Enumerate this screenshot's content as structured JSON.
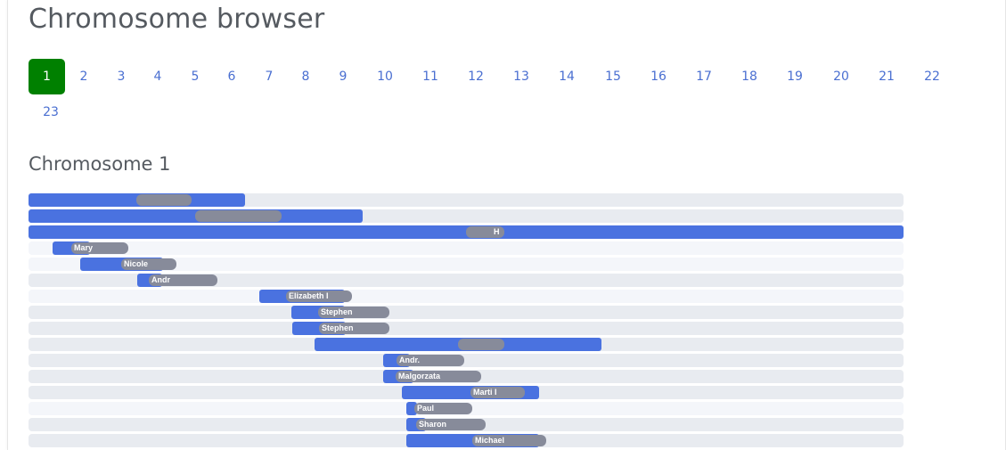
{
  "page": {
    "title": "Chromosome browser"
  },
  "pagination": {
    "active": "1",
    "pages": [
      "1",
      "2",
      "3",
      "4",
      "5",
      "6",
      "7",
      "8",
      "9",
      "10",
      "11",
      "12",
      "13",
      "14",
      "15",
      "16",
      "17",
      "18",
      "19",
      "20",
      "21",
      "22",
      "23"
    ]
  },
  "section": {
    "title": "Chromosome 1"
  },
  "colors": {
    "active_page": "#008000",
    "segment": "#4a72e0",
    "label": "#878b9a",
    "track": "#e8ebf0",
    "link": "#4a6fd1"
  },
  "tracks": [
    {
      "label": ""
    },
    {
      "label": ""
    },
    {
      "label": "H"
    },
    {
      "label": "Mary"
    },
    {
      "label": "Nicole"
    },
    {
      "label": "Andr"
    },
    {
      "label": "Elizabeth I"
    },
    {
      "label": "Stephen"
    },
    {
      "label": "Stephen"
    },
    {
      "label": ""
    },
    {
      "label": "Andr."
    },
    {
      "label": "Malgorzata"
    },
    {
      "label": "Marti I"
    },
    {
      "label": "Paul"
    },
    {
      "label": "Sharon"
    },
    {
      "label": "Michael"
    }
  ]
}
